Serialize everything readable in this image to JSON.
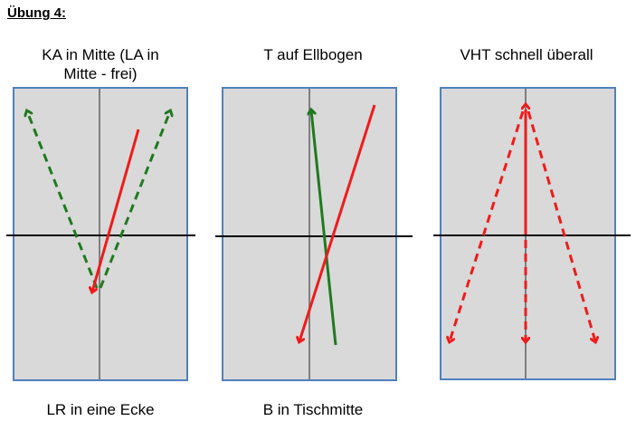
{
  "heading": "Übung 4:",
  "panels": [
    {
      "top_label": "KA in Mitte (LA in\nMitte - frei)",
      "bottom_label": "LR in eine Ecke"
    },
    {
      "top_label": "T auf Ellbogen",
      "bottom_label": "B in Tischmitte"
    },
    {
      "top_label": "VHT schnell überall",
      "bottom_label": ""
    }
  ],
  "colors": {
    "table_fill": "#d9d9d9",
    "table_border": "#4f81bd",
    "center_line": "#7f7f7f",
    "net": "#000000",
    "red": "#ee1c1c",
    "green": "#1f7a1f"
  }
}
